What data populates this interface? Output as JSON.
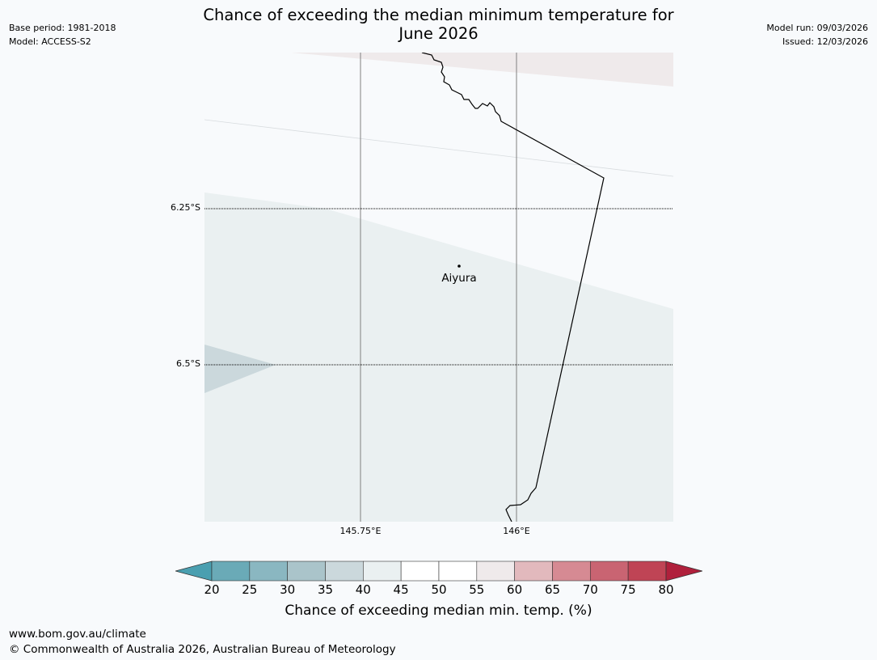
{
  "header": {
    "title_line1": "Chance of exceeding the median minimum temperature for",
    "title_line2": "June 2026",
    "base_period": "Base period: 1981-2018",
    "model": "Model: ACCESS-S2",
    "model_run": "Model run: 09/03/2026",
    "issued": "Issued: 12/03/2026"
  },
  "map": {
    "latitude_labels": [
      "6.25°S",
      "6.5°S"
    ],
    "longitude_labels": [
      "145.75°E",
      "146°E"
    ],
    "place": {
      "name": "Aiyura"
    }
  },
  "colorbar": {
    "title": "Chance of exceeding median min. temp. (%)",
    "ticks": [
      "20",
      "25",
      "30",
      "35",
      "40",
      "45",
      "50",
      "55",
      "60",
      "65",
      "70",
      "75",
      "80"
    ],
    "under_color": "#4a9fb0",
    "over_color": "#b0203c",
    "bins": [
      {
        "from": 20,
        "to": 25,
        "color": "#6aaab7"
      },
      {
        "from": 25,
        "to": 30,
        "color": "#8ab7c1"
      },
      {
        "from": 30,
        "to": 35,
        "color": "#aac4ca"
      },
      {
        "from": 35,
        "to": 40,
        "color": "#cbd8dc"
      },
      {
        "from": 40,
        "to": 45,
        "color": "#eaf0f1"
      },
      {
        "from": 45,
        "to": 50,
        "color": "#ffffff"
      },
      {
        "from": 50,
        "to": 55,
        "color": "#ffffff"
      },
      {
        "from": 55,
        "to": 60,
        "color": "#efeaeb"
      },
      {
        "from": 60,
        "to": 65,
        "color": "#e2b9bd"
      },
      {
        "from": 65,
        "to": 70,
        "color": "#d68a93"
      },
      {
        "from": 70,
        "to": 75,
        "color": "#c96472"
      },
      {
        "from": 75,
        "to": 80,
        "color": "#bf4455"
      }
    ]
  },
  "footer": {
    "url": "www.bom.gov.au/climate",
    "copyright": "© Commonwealth of Australia 2026, Australian Bureau of Meteorology"
  }
}
